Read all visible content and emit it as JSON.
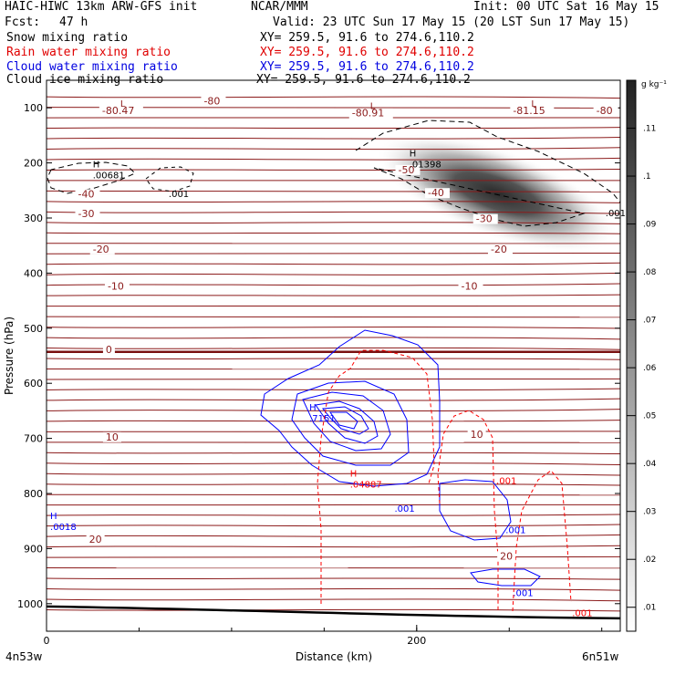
{
  "header": {
    "model": "HAIC-HIWC 13km ARW-GFS init",
    "org": "NCAR/MMM",
    "init": "Init: 00 UTC Sat 16 May 15",
    "fcst_label": "Fcst:",
    "fcst_value": "47 h",
    "valid": "Valid: 23 UTC Sun 17 May 15 (20 LST Sun 17 May 15)",
    "fields": [
      {
        "name": "Snow mixing ratio",
        "xy": "XY= 259.5, 91.6 to 274.6,110.2",
        "color": "#000000"
      },
      {
        "name": "Rain water mixing ratio",
        "xy": "XY= 259.5, 91.6 to 274.6,110.2",
        "color": "#ff0000"
      },
      {
        "name": "Cloud water mixing ratio",
        "xy": "XY= 259.5, 91.6 to 274.6,110.2",
        "color": "#0000ff"
      },
      {
        "name": "Cloud ice mixing ratio",
        "xy": "XY= 259.5, 91.6 to 274.6,110.2",
        "color": "#000000"
      }
    ]
  },
  "chart_data": {
    "type": "contour",
    "xlabel": "Distance (km)",
    "ylabel": "Pressure (hPa)",
    "x_ticks": [
      "0",
      "200"
    ],
    "x_tick_values": [
      0,
      200
    ],
    "xlim": [
      0,
      310
    ],
    "y_ticks": [
      100,
      200,
      300,
      400,
      500,
      600,
      700,
      800,
      900,
      1000
    ],
    "ylim": [
      1050,
      50
    ],
    "left_endpoint": "4n53w",
    "right_endpoint": "6n51w",
    "colorbar": {
      "unit": "g kg⁻¹",
      "ticks": [
        ".01",
        ".02",
        ".03",
        ".04",
        ".05",
        ".06",
        ".07",
        ".08",
        ".09",
        ".1",
        ".11"
      ],
      "tick_values": [
        0.01,
        0.02,
        0.03,
        0.04,
        0.05,
        0.06,
        0.07,
        0.08,
        0.09,
        0.1,
        0.11
      ],
      "range": [
        0.005,
        0.12
      ],
      "shaded_field": "Cloud ice mixing ratio"
    },
    "temperature_labels": [
      {
        "text": "-80",
        "x": 85,
        "p": 92
      },
      {
        "text": "-80",
        "x": 297,
        "p": 110
      },
      {
        "text": "-80.47",
        "x": 30,
        "p": 110
      },
      {
        "text": "-80.91",
        "x": 165,
        "p": 114
      },
      {
        "text": "-81.15",
        "x": 252,
        "p": 110
      },
      {
        "text": "-50",
        "x": 190,
        "p": 217
      },
      {
        "text": "-40",
        "x": 17,
        "p": 261
      },
      {
        "text": "-40",
        "x": 206,
        "p": 259
      },
      {
        "text": "-30",
        "x": 17,
        "p": 297
      },
      {
        "text": "-30",
        "x": 232,
        "p": 306
      },
      {
        "text": "-20",
        "x": 25,
        "p": 361
      },
      {
        "text": "-20",
        "x": 240,
        "p": 361
      },
      {
        "text": "-10",
        "x": 33,
        "p": 428
      },
      {
        "text": "-10",
        "x": 224,
        "p": 428
      },
      {
        "text": "0",
        "x": 32,
        "p": 543
      },
      {
        "text": "10",
        "x": 32,
        "p": 702
      },
      {
        "text": "10",
        "x": 229,
        "p": 697
      },
      {
        "text": "20",
        "x": 23,
        "p": 888
      },
      {
        "text": "20",
        "x": 245,
        "p": 918
      }
    ],
    "extrema": [
      {
        "mark": "L",
        "value": "-80.47",
        "field": "temperature"
      },
      {
        "mark": "L",
        "value": "-80.91",
        "field": "temperature"
      },
      {
        "mark": "L",
        "value": "-81.15",
        "field": "temperature"
      },
      {
        "mark": "H",
        "value": ".00681",
        "field": "snow",
        "x": 25,
        "p": 228
      },
      {
        "mark": "H",
        "value": ".01398",
        "field": "ice",
        "x": 196,
        "p": 208
      },
      {
        "mark": "H",
        "value": ".7151",
        "field": "cloud water",
        "x": 142,
        "p": 669
      },
      {
        "mark": "H",
        "value": ".04887",
        "field": "rain",
        "x": 164,
        "p": 789
      },
      {
        "mark": "H",
        "value": ".0018",
        "field": "cloud water",
        "x": 2,
        "p": 866
      }
    ],
    "contour_labels": [
      {
        "text": ".001",
        "field": "snow",
        "x": 66,
        "p": 262
      },
      {
        "text": ".001",
        "field": "snow",
        "x": 302,
        "p": 297
      },
      {
        "text": ".001",
        "field": "cloud water",
        "x": 188,
        "p": 833
      },
      {
        "text": ".001",
        "field": "cloud water",
        "x": 248,
        "p": 872
      },
      {
        "text": ".001",
        "field": "cloud water",
        "x": 252,
        "p": 986
      },
      {
        "text": ".001",
        "field": "rain",
        "x": 243,
        "p": 783
      },
      {
        "text": ".001",
        "field": "rain",
        "x": 284,
        "p": 1023
      }
    ]
  }
}
